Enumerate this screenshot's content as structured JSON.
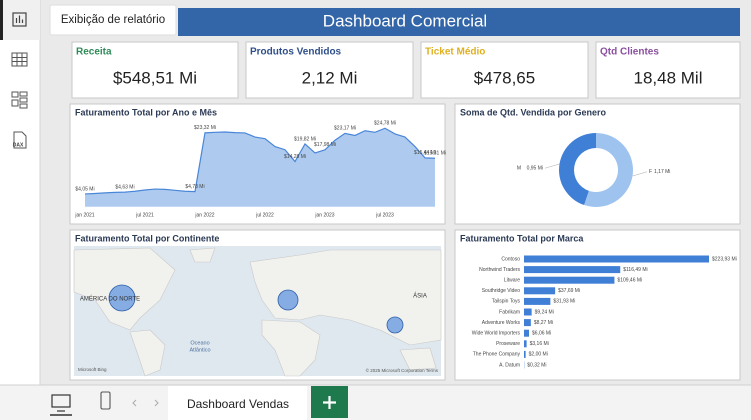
{
  "sidebar": {
    "tooltip": "Exibição de relatório",
    "dax_icon": "DAX"
  },
  "header": {
    "title": "Dashboard Comercial"
  },
  "kpis": [
    {
      "label": "Receita",
      "value": "$548,51 Mi",
      "color": "#2e8b57"
    },
    {
      "label": "Produtos Vendidos",
      "value": "2,12 Mi",
      "color": "#2f4f8a"
    },
    {
      "label": "Ticket Médio",
      "value": "$478,65",
      "color": "#e0b020"
    },
    {
      "label": "Qtd Clientes",
      "value": "18,48 Mil",
      "color": "#8a4f9e"
    }
  ],
  "chart_data": [
    {
      "type": "area",
      "title": "Faturamento Total por Ano e Mês",
      "color": "#4a86d8",
      "fill": "#aecbef",
      "categories": [
        "jan 2021",
        null,
        null,
        null,
        null,
        null,
        "jul 2021",
        null,
        null,
        null,
        null,
        null,
        "jan 2022",
        null,
        null,
        null,
        null,
        null,
        "jul 2022",
        null,
        null,
        null,
        null,
        null,
        "jan 2023",
        null,
        null,
        null,
        null,
        null,
        "jul 2023",
        null,
        null,
        null,
        null,
        null
      ],
      "values": [
        4.05,
        4.2,
        4.4,
        4.55,
        4.63,
        4.9,
        5.3,
        5.6,
        5.5,
        5.2,
        4.9,
        4.78,
        23.32,
        23.5,
        23.6,
        23.4,
        23.3,
        22.0,
        21.5,
        19.0,
        18.0,
        14.28,
        19.82,
        17.0,
        17.98,
        21.0,
        23.17,
        22.5,
        24.0,
        23.5,
        24.78,
        23.0,
        22.0,
        19.0,
        15.44,
        15.31
      ],
      "value_labels": [
        "$4,05 Mi",
        null,
        null,
        null,
        "$4,63 Mi",
        null,
        null,
        null,
        null,
        null,
        null,
        "$4,78 Mi",
        "$23,32 Mi",
        null,
        null,
        null,
        null,
        null,
        null,
        null,
        null,
        "$14,28 Mi",
        "$19,82 Mi",
        null,
        "$17,98 Mi",
        null,
        "$23,17 Mi",
        null,
        null,
        null,
        "$24,78 Mi",
        null,
        null,
        null,
        "$15,44 Mi",
        "$15,31 Mi"
      ]
    },
    {
      "type": "donut",
      "title": "Soma de Qtd. Vendida por Genero",
      "categories": [
        "M",
        "F"
      ],
      "values": [
        0.95,
        1.17
      ],
      "value_labels": [
        "0,95 Mi",
        "1,17 Mi"
      ],
      "colors": [
        "#3f7fd6",
        "#9ec3ef"
      ]
    },
    {
      "type": "hbar",
      "title": "Faturamento Total por Marca",
      "color": "#3f7fd6",
      "categories": [
        "Contoso",
        "Northwind Traders",
        "Litware",
        "Southridge Video",
        "Tailspin Toys",
        "Fabrikam",
        "Adventure Works",
        "Wide World Importers",
        "Proseware",
        "The Phone Company",
        "A. Datum"
      ],
      "values": [
        223.93,
        116.49,
        109.46,
        37.69,
        31.93,
        9.24,
        8.27,
        6.06,
        3.16,
        2.0,
        0.32
      ],
      "value_labels": [
        "$223,93 Mi",
        "$116,49 Mi",
        "$109,46 Mi",
        "$37,69 Mi",
        "$31,93 Mi",
        "$9,24 Mi",
        "$8,27 Mi",
        "$6,06 Mi",
        "$3,16 Mi",
        "$2,00 Mi",
        "$0,32 Mi"
      ]
    }
  ],
  "map": {
    "title": "Faturamento Total por Continente",
    "labels": [
      "AMÉRICA DO NORTE",
      "ÁSIA"
    ],
    "ocean": [
      "Oceano",
      "Atlântico"
    ],
    "credit": "© 2025 Microsoft Corporation Terms",
    "logo": "Microsoft Bing"
  },
  "tabs": {
    "active": "Dashboard Vendas"
  }
}
